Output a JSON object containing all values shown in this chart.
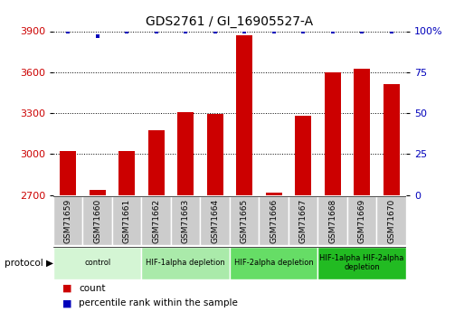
{
  "title": "GDS2761 / GI_16905527-A",
  "samples": [
    "GSM71659",
    "GSM71660",
    "GSM71661",
    "GSM71662",
    "GSM71663",
    "GSM71664",
    "GSM71665",
    "GSM71666",
    "GSM71667",
    "GSM71668",
    "GSM71669",
    "GSM71670"
  ],
  "counts": [
    3020,
    2740,
    3025,
    3175,
    3310,
    3295,
    3870,
    2720,
    3280,
    3600,
    3625,
    3510
  ],
  "percentile_ranks": [
    100,
    97,
    100,
    100,
    100,
    100,
    100,
    100,
    100,
    100,
    100,
    100
  ],
  "bar_color": "#cc0000",
  "dot_color": "#0000bb",
  "ylim_left": [
    2700,
    3900
  ],
  "ylim_right": [
    0,
    100
  ],
  "yticks_left": [
    2700,
    3000,
    3300,
    3600,
    3900
  ],
  "yticks_right": [
    0,
    25,
    50,
    75,
    100
  ],
  "protocol_groups": [
    {
      "label": "control",
      "start": 0,
      "end": 2,
      "color": "#d4f5d4"
    },
    {
      "label": "HIF-1alpha depletion",
      "start": 3,
      "end": 5,
      "color": "#aaeaaa"
    },
    {
      "label": "HIF-2alpha depletion",
      "start": 6,
      "end": 8,
      "color": "#66dd66"
    },
    {
      "label": "HIF-1alpha HIF-2alpha\ndepletion",
      "start": 9,
      "end": 11,
      "color": "#22bb22"
    }
  ],
  "tick_label_color_left": "#cc0000",
  "tick_label_color_right": "#0000bb",
  "sample_box_color": "#cccccc",
  "legend_count_color": "#cc0000",
  "legend_percentile_color": "#0000bb"
}
